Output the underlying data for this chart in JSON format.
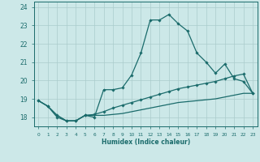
{
  "xlabel": "Humidex (Indice chaleur)",
  "ylabel": "",
  "bg_color": "#cce8e8",
  "line_color": "#1a6b6b",
  "grid_color": "#aacccc",
  "x_values": [
    0,
    1,
    2,
    3,
    4,
    5,
    6,
    7,
    8,
    9,
    10,
    11,
    12,
    13,
    14,
    15,
    16,
    17,
    18,
    19,
    20,
    21,
    22,
    23
  ],
  "main_y": [
    18.9,
    18.6,
    18.0,
    17.8,
    17.8,
    18.1,
    18.0,
    19.5,
    19.5,
    19.6,
    20.3,
    21.5,
    23.3,
    23.3,
    23.6,
    23.1,
    22.7,
    21.5,
    21.0,
    20.4,
    20.9,
    20.1,
    19.95,
    19.3
  ],
  "line2_y": [
    18.9,
    18.6,
    18.1,
    17.8,
    17.8,
    18.1,
    18.15,
    18.3,
    18.5,
    18.65,
    18.8,
    18.95,
    19.1,
    19.25,
    19.4,
    19.55,
    19.65,
    19.75,
    19.85,
    19.95,
    20.1,
    20.25,
    20.35,
    19.3
  ],
  "line3_y": [
    18.9,
    18.6,
    18.1,
    17.8,
    17.8,
    18.1,
    18.1,
    18.1,
    18.15,
    18.2,
    18.3,
    18.4,
    18.5,
    18.6,
    18.7,
    18.8,
    18.85,
    18.9,
    18.95,
    19.0,
    19.1,
    19.2,
    19.3,
    19.3
  ],
  "ylim": [
    17.5,
    24.3
  ],
  "xlim": [
    -0.5,
    23.5
  ],
  "yticks": [
    18,
    19,
    20,
    21,
    22,
    23,
    24
  ],
  "xtick_labels": [
    "0",
    "1",
    "2",
    "3",
    "4",
    "5",
    "6",
    "7",
    "8",
    "9",
    "10",
    "11",
    "12",
    "13",
    "14",
    "15",
    "16",
    "17",
    "18",
    "19",
    "20",
    "21",
    "22",
    "23"
  ]
}
